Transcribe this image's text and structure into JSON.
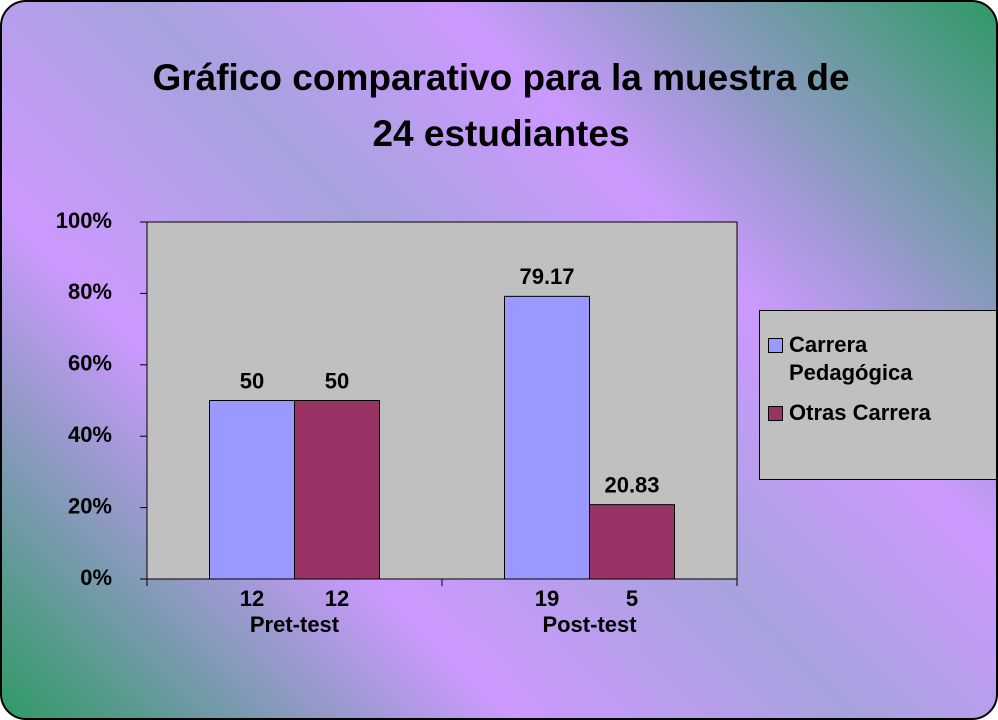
{
  "chart_data": {
    "type": "bar",
    "title": [
      "Gráfico comparativo para la muestra de",
      "24 estudiantes"
    ],
    "categories": [
      "Pret-test",
      "Post-test"
    ],
    "series": [
      {
        "name": "Carrera Pedagógica",
        "color": "#9999ff",
        "values": [
          50,
          79.17
        ],
        "counts": [
          12,
          19
        ]
      },
      {
        "name": "Otras Carrera",
        "color": "#993366",
        "values": [
          50,
          20.83
        ],
        "counts": [
          12,
          5
        ]
      }
    ],
    "ylim": [
      0,
      100
    ],
    "yticks": [
      {
        "value": 0,
        "label": "0%"
      },
      {
        "value": 20,
        "label": "20%"
      },
      {
        "value": 40,
        "label": "40%"
      },
      {
        "value": 60,
        "label": "60%"
      },
      {
        "value": 80,
        "label": "80%"
      },
      {
        "value": 100,
        "label": "100%"
      }
    ],
    "grid": false,
    "legend": "right",
    "plot_background": "#c0c0c0"
  }
}
